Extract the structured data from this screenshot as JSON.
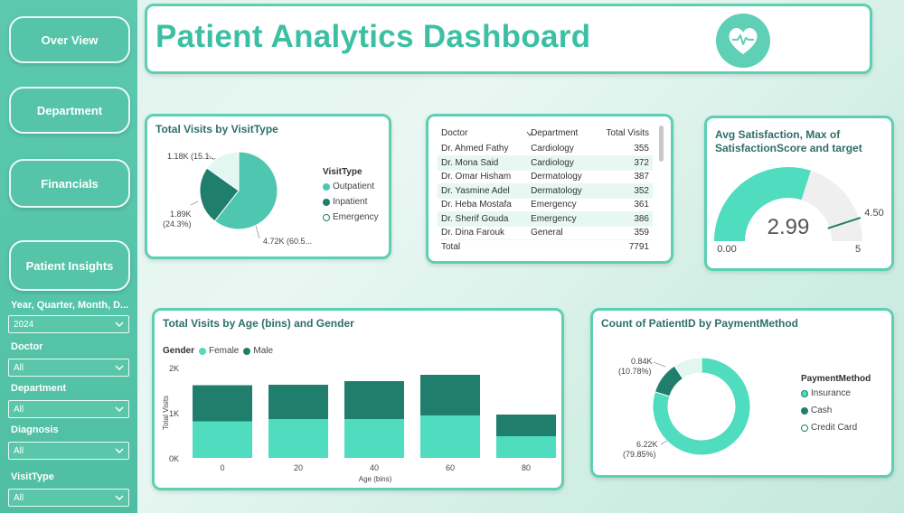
{
  "title": "Patient Analytics Dashboard",
  "nav": {
    "overview": "Over View",
    "department": "Department",
    "financials": "Financials",
    "patient_insights": "Patient Insights"
  },
  "filters": [
    {
      "label": "Year, Quarter, Month, D...",
      "value": "2024"
    },
    {
      "label": "Doctor",
      "value": "All"
    },
    {
      "label": "Department",
      "value": "All"
    },
    {
      "label": "Diagnosis",
      "value": "All"
    },
    {
      "label": "VisitType",
      "value": "All"
    }
  ],
  "colors": {
    "teal_light": "#4fdcbf",
    "teal_dark": "#1f7f6c",
    "title": "#3cbfa2",
    "accent_border": "#5dd0b3"
  },
  "visits_by_type": {
    "title": "Total Visits by VisitType",
    "legend_title": "VisitType",
    "labels": {
      "emergency": "1.18K (15.1...",
      "inpatient_value": "1.89K",
      "inpatient_pct": "(24.3%)",
      "outpatient": "4.72K (60.5..."
    }
  },
  "doctor_table": {
    "headers": [
      "Doctor",
      "Department",
      "Total Visits"
    ],
    "rows": [
      [
        "Dr. Ahmed Fathy",
        "Cardiology",
        "355"
      ],
      [
        "Dr. Mona Said",
        "Cardiology",
        "372"
      ],
      [
        "Dr. Omar Hisham",
        "Dermatology",
        "387"
      ],
      [
        "Dr. Yasmine Adel",
        "Dermatology",
        "352"
      ],
      [
        "Dr. Heba Mostafa",
        "Emergency",
        "361"
      ],
      [
        "Dr. Sherif Gouda",
        "Emergency",
        "386"
      ],
      [
        "Dr. Dina Farouk",
        "General",
        "359"
      ]
    ],
    "total_label": "Total",
    "total_value": "7791"
  },
  "satisfaction": {
    "title_line1": "Avg Satisfaction, Max of",
    "title_line2": "SatisfactionScore and target",
    "value_label": "2.99",
    "target_label": "4.50",
    "min_label": "0.00",
    "max_label": "5"
  },
  "age_gender": {
    "title": "Total Visits by Age (bins) and Gender",
    "legend_title": "Gender",
    "ylabel": "Total Visits",
    "xlabel": "Age (bins)",
    "y_ticks": [
      "2K",
      "1K",
      "0K"
    ]
  },
  "payment": {
    "title": "Count of PatientID by PaymentMethod",
    "legend_title": "PaymentMethod",
    "labels": {
      "cash_value": "0.84K",
      "cash_pct": "(10.78%)",
      "insurance_value": "6.22K",
      "insurance_pct": "(79.85%)"
    }
  },
  "chart_data": [
    {
      "type": "pie",
      "title": "Total Visits by VisitType",
      "categories": [
        "Outpatient",
        "Inpatient",
        "Emergency"
      ],
      "values": [
        4720,
        1890,
        1180
      ],
      "colors": [
        "#4fc7b0",
        "#1f7f6c",
        "#e3f7f1"
      ]
    },
    {
      "type": "bar",
      "stacked": true,
      "title": "Total Visits by Age (bins) and Gender",
      "categories": [
        "0",
        "20",
        "40",
        "60",
        "80"
      ],
      "series": [
        {
          "name": "Female",
          "values": [
            810,
            860,
            860,
            940,
            480
          ],
          "color": "#4fdcbf"
        },
        {
          "name": "Male",
          "values": [
            800,
            760,
            840,
            900,
            480
          ],
          "color": "#1f7f6c"
        }
      ],
      "xlabel": "Age (bins)",
      "ylabel": "Total Visits",
      "ylim": [
        0,
        2000
      ]
    },
    {
      "type": "pie",
      "donut": true,
      "title": "Count of PatientID by PaymentMethod",
      "categories": [
        "Insurance",
        "Cash",
        "Credit Card"
      ],
      "values": [
        79.85,
        10.78,
        9.37
      ],
      "colors": [
        "#4fdcbf",
        "#1f7f6c",
        "#e3f7f1"
      ]
    },
    {
      "type": "gauge",
      "title": "Avg Satisfaction, Max of SatisfactionScore and target",
      "value": 2.99,
      "min": 0,
      "max": 5,
      "target": 4.5
    }
  ]
}
